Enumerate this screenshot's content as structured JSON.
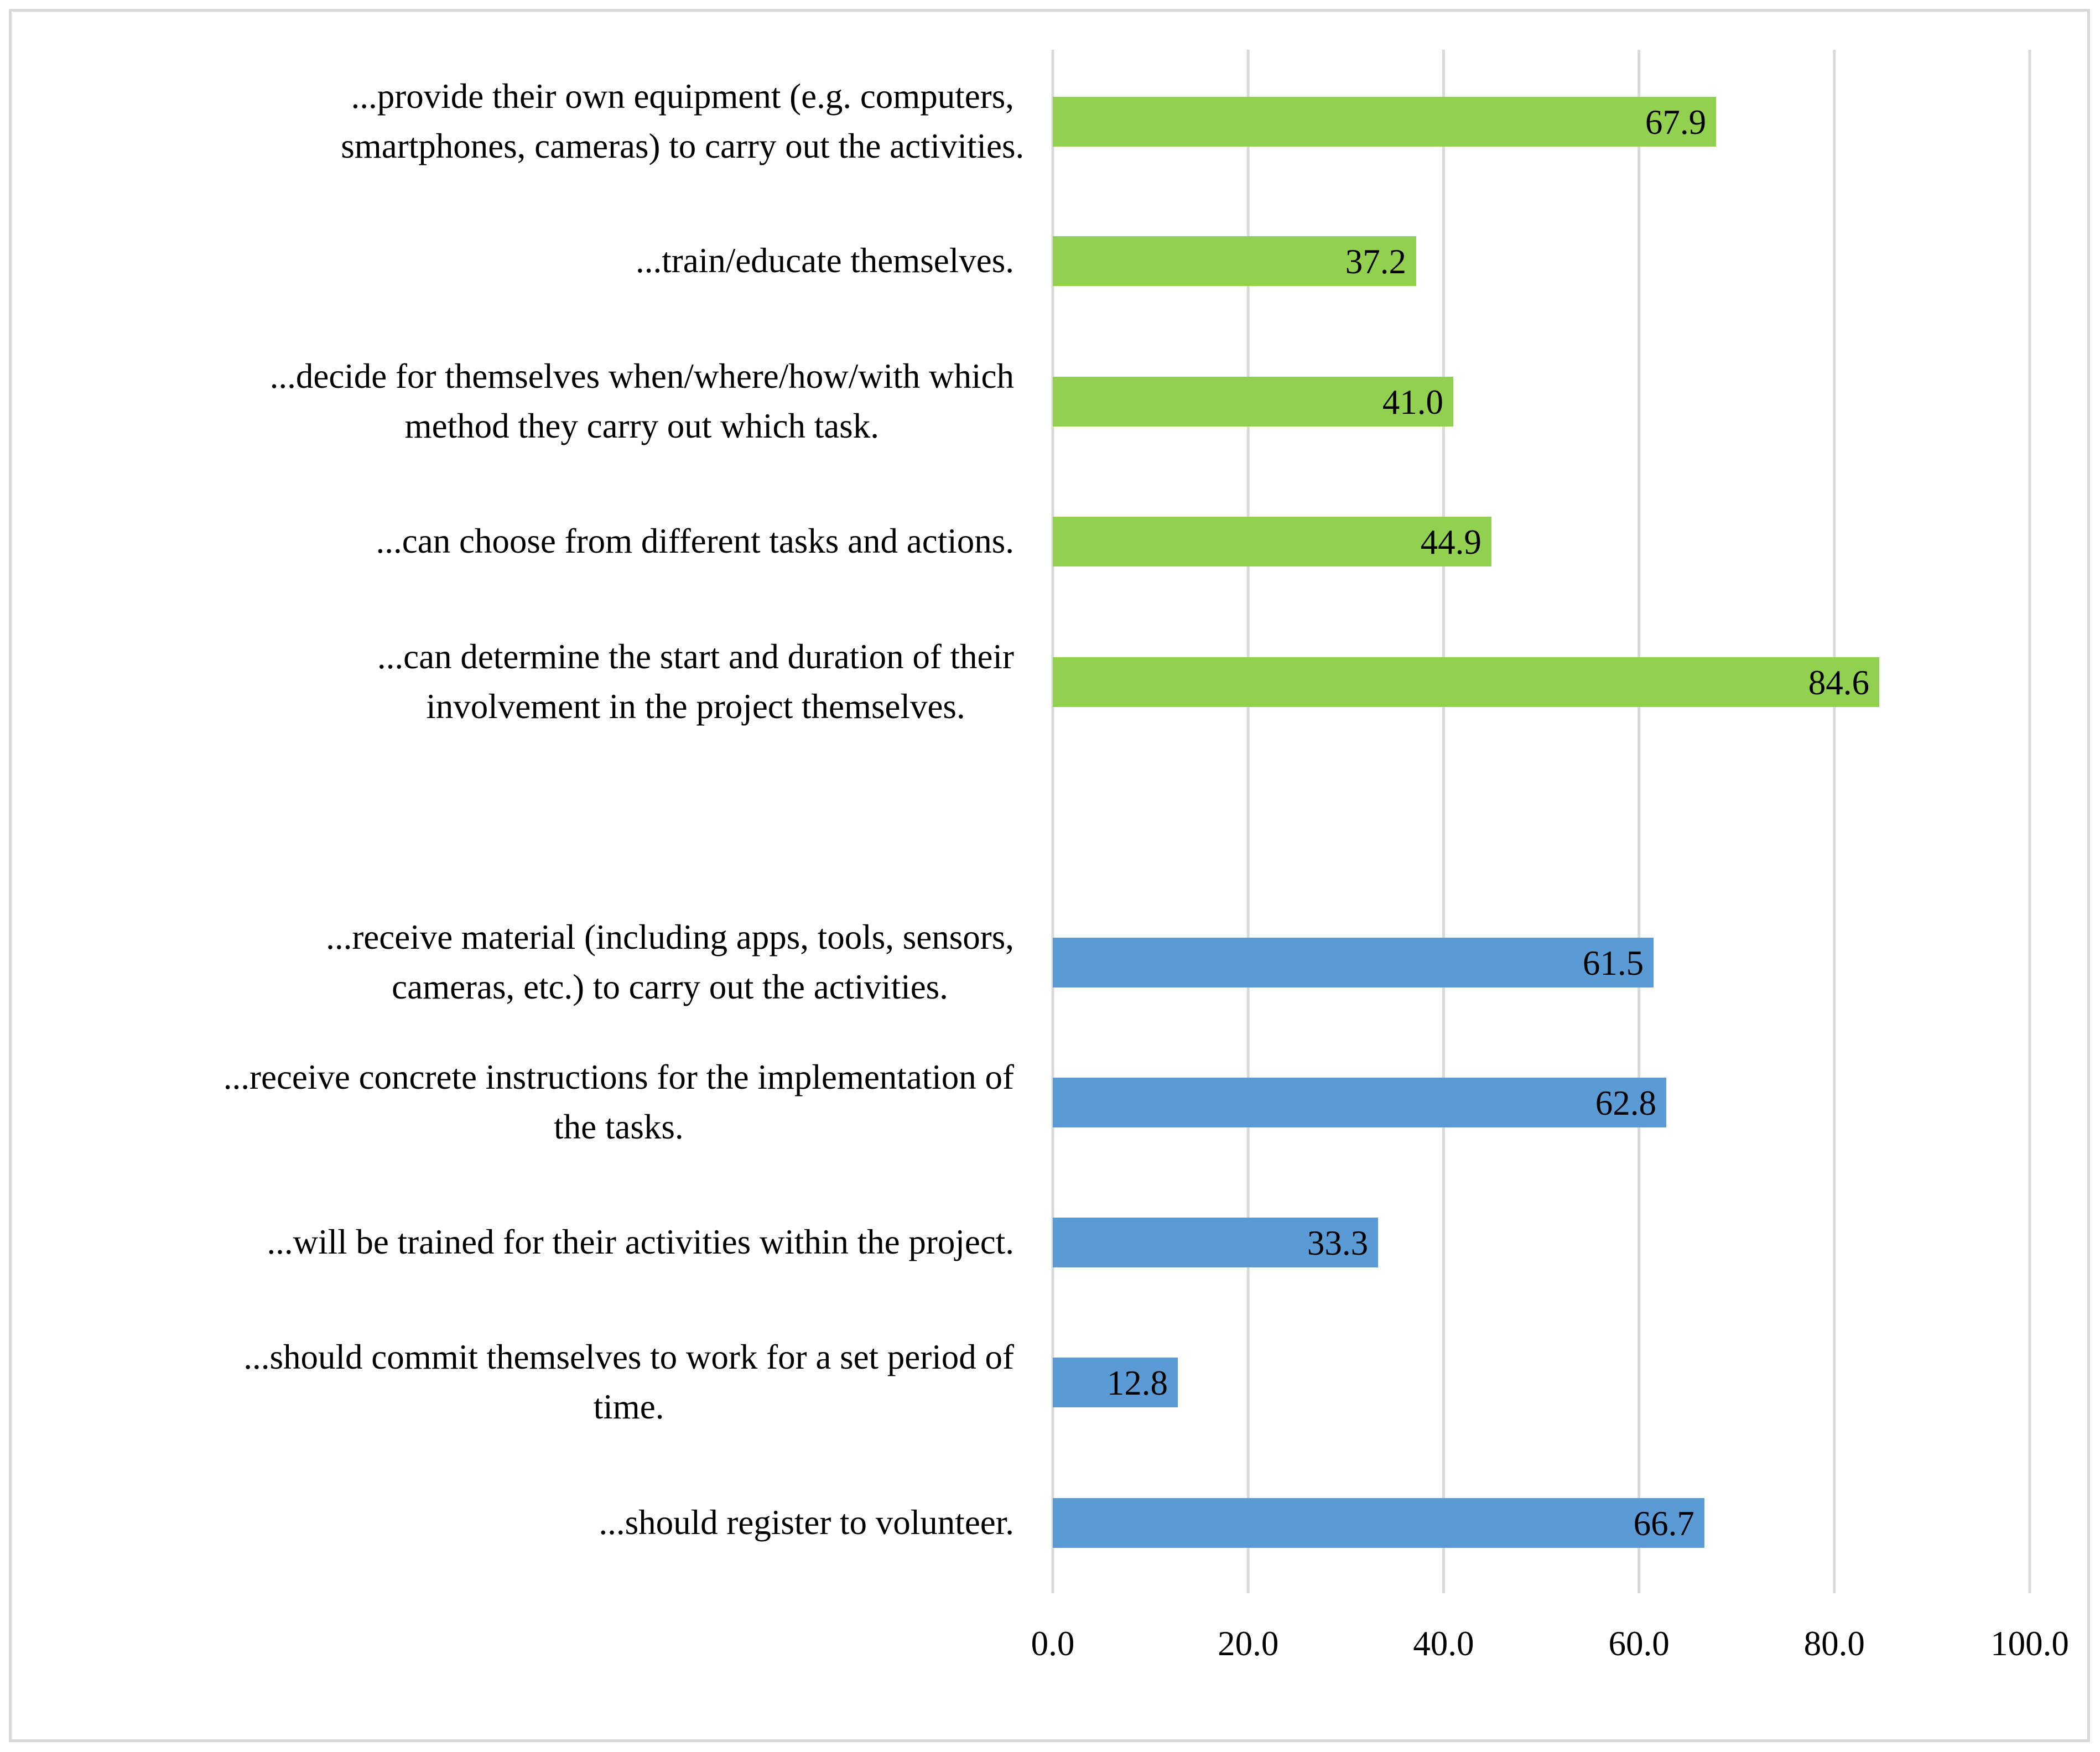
{
  "chart_data": {
    "type": "bar",
    "orientation": "horizontal",
    "title": "",
    "xlabel": "",
    "ylabel": "",
    "xlim": [
      0,
      100
    ],
    "x_ticks": [
      "0.0",
      "20.0",
      "40.0",
      "60.0",
      "80.0",
      "100.0"
    ],
    "grid": true,
    "legend": "none",
    "series_colors": {
      "green": "#92d050",
      "blue": "#5b9bd5"
    },
    "categories": [
      {
        "label_lines": [
          "...provide their own equipment (e.g. computers,",
          "smartphones, cameras) to carry out the activities."
        ],
        "value": 67.9,
        "value_label": "67.9",
        "group": "green"
      },
      {
        "label_lines": [
          "...train/educate themselves."
        ],
        "value": 37.2,
        "value_label": "37.2",
        "group": "green"
      },
      {
        "label_lines": [
          "...decide for themselves when/where/how/with which",
          "method they carry out which task."
        ],
        "value": 41.0,
        "value_label": "41.0",
        "group": "green"
      },
      {
        "label_lines": [
          "...can choose from different tasks and actions."
        ],
        "value": 44.9,
        "value_label": "44.9",
        "group": "green"
      },
      {
        "label_lines": [
          "...can determine the start and duration of their",
          "involvement in the project themselves."
        ],
        "value": 84.6,
        "value_label": "84.6",
        "group": "green"
      },
      {
        "label_lines": [
          "...receive material (including apps, tools, sensors,",
          "cameras, etc.) to carry out the activities."
        ],
        "value": 61.5,
        "value_label": "61.5",
        "group": "blue"
      },
      {
        "label_lines": [
          "...receive concrete instructions for the implementation of",
          "the tasks."
        ],
        "value": 62.8,
        "value_label": "62.8",
        "group": "blue"
      },
      {
        "label_lines": [
          "...will be trained for their activities within the project."
        ],
        "value": 33.3,
        "value_label": "33.3",
        "group": "blue"
      },
      {
        "label_lines": [
          "...should commit themselves to work for a set period of",
          "time."
        ],
        "value": 12.8,
        "value_label": "12.8",
        "group": "blue"
      },
      {
        "label_lines": [
          "...should register to volunteer."
        ],
        "value": 66.7,
        "value_label": "66.7",
        "group": "blue"
      }
    ]
  }
}
